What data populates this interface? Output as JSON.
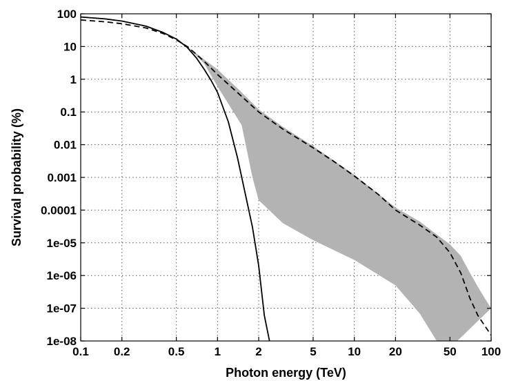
{
  "chart_data": {
    "type": "line",
    "title": "",
    "xlabel": "Photon energy (TeV)",
    "ylabel": "Survival probability (%)",
    "xscale": "log",
    "yscale": "log",
    "xlim": [
      0.1,
      100
    ],
    "ylim": [
      1e-08,
      100
    ],
    "grid": true,
    "x_ticks": [
      0.1,
      0.2,
      0.5,
      1,
      2,
      5,
      10,
      20,
      50,
      100
    ],
    "x_tick_labels": [
      "0.1",
      "0.2",
      "0.5",
      "1",
      "2",
      "5",
      "10",
      "20",
      "50",
      "100"
    ],
    "y_ticks": [
      100,
      10,
      1,
      0.1,
      0.01,
      0.001,
      0.0001,
      1e-05,
      1e-06,
      1e-07,
      1e-08
    ],
    "y_tick_labels": [
      "100",
      "10",
      "1",
      "0.1",
      "0.01",
      "0.001",
      "0.0001",
      "1e-05",
      "1e-06",
      "1e-07",
      "1e-08"
    ],
    "band_color": "#b3b3b3",
    "series": [
      {
        "style": "solid",
        "color": "#000000",
        "x": [
          0.1,
          0.15,
          0.2,
          0.3,
          0.4,
          0.5,
          0.6,
          0.7,
          0.8,
          0.9,
          1.0,
          1.2,
          1.4,
          1.6,
          1.8,
          2.0,
          2.2,
          2.4
        ],
        "y": [
          80,
          70,
          60,
          42,
          27,
          17,
          9.5,
          4.5,
          2.0,
          0.9,
          0.4,
          0.05,
          0.004,
          0.0003,
          3e-05,
          2e-06,
          6e-08,
          1e-08
        ]
      },
      {
        "style": "dashed",
        "color": "#000000",
        "x": [
          0.1,
          0.15,
          0.2,
          0.3,
          0.4,
          0.5,
          0.6,
          0.7,
          0.8,
          1.0,
          1.5,
          2.0,
          3.0,
          5.0,
          7.0,
          10,
          15,
          20,
          30,
          40,
          50,
          60,
          70,
          80,
          100
        ],
        "y": [
          65,
          57,
          50,
          37,
          25,
          16,
          10,
          5.8,
          3.5,
          1.4,
          0.3,
          0.1,
          0.03,
          0.008,
          0.0032,
          0.0011,
          0.0003,
          0.0001,
          3.5e-05,
          1.5e-05,
          5e-06,
          1.2e-06,
          2e-07,
          6e-08,
          1.5e-08
        ]
      }
    ],
    "band": {
      "x_upper": [
        0.6,
        0.8,
        1.0,
        1.5,
        2.0,
        3.0,
        5.0,
        10,
        20,
        30,
        40,
        50,
        60,
        70,
        80,
        90,
        100
      ],
      "y_upper": [
        10,
        4.0,
        2.0,
        0.4,
        0.12,
        0.035,
        0.009,
        0.0012,
        0.00012,
        4.5e-05,
        1.8e-05,
        9e-06,
        4e-06,
        1.2e-06,
        4.5e-07,
        2e-07,
        1e-07
      ],
      "x_lower": [
        0.6,
        0.8,
        1.0,
        1.5,
        1.8,
        2.0,
        3.0,
        5.0,
        10,
        20,
        30,
        40,
        45
      ],
      "y_lower": [
        10,
        3.0,
        0.6,
        0.04,
        0.001,
        0.0002,
        4e-05,
        1.2e-05,
        3e-06,
        5e-07,
        7e-08,
        1e-08,
        4e-09
      ]
    }
  }
}
